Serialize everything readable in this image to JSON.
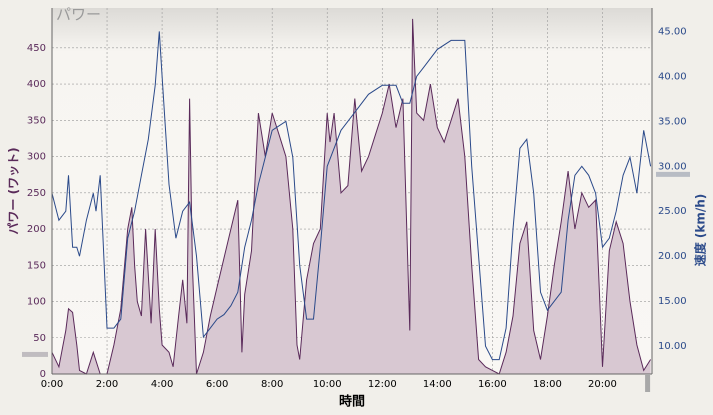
{
  "chart_data": {
    "type": "area-line",
    "title": "パワー",
    "x_label": "時間",
    "y_label": "パワー (ワット)",
    "y2_label": "速度 (km/h)",
    "xlim": [
      0,
      21.8
    ],
    "ylim": [
      0,
      505
    ],
    "y2lim": [
      6.9,
      47.6
    ],
    "xticks": [
      {
        "value": 0,
        "label": "0:00"
      },
      {
        "value": 2,
        "label": "2:00"
      },
      {
        "value": 4,
        "label": "4:00"
      },
      {
        "value": 6,
        "label": "6:00"
      },
      {
        "value": 8,
        "label": "8:00"
      },
      {
        "value": 10,
        "label": "10:00"
      },
      {
        "value": 12,
        "label": "12:00"
      },
      {
        "value": 14,
        "label": "14:00"
      },
      {
        "value": 16,
        "label": "16:00"
      },
      {
        "value": 18,
        "label": "18:00"
      },
      {
        "value": 20,
        "label": "20:00"
      }
    ],
    "yticks": [
      0,
      50,
      100,
      150,
      200,
      250,
      300,
      350,
      400,
      450
    ],
    "y2ticks": [
      {
        "value": 10,
        "label": "10.00"
      },
      {
        "value": 15,
        "label": "15.00"
      },
      {
        "value": 20,
        "label": "20.00"
      },
      {
        "value": 25,
        "label": "25.00"
      },
      {
        "value": 30,
        "label": "30.00"
      },
      {
        "value": 35,
        "label": "35.00"
      },
      {
        "value": 40,
        "label": "40.00"
      },
      {
        "value": 45,
        "label": "45.00"
      }
    ],
    "grid": true,
    "reference_markers": {
      "y": 27,
      "y2": 29.1,
      "x": 21.64
    },
    "series": [
      {
        "color": "#5a2a5a",
        "fill": "#d8c8d2",
        "x": [
          0,
          0.25,
          0.5,
          0.6,
          0.75,
          0.9,
          1.0,
          1.25,
          1.5,
          1.75,
          2.0,
          2.25,
          2.5,
          2.75,
          2.9,
          3.0,
          3.1,
          3.25,
          3.4,
          3.6,
          3.75,
          3.9,
          4.0,
          4.25,
          4.4,
          4.6,
          4.75,
          4.9,
          5.0,
          5.1,
          5.25,
          5.5,
          5.75,
          6.0,
          6.25,
          6.5,
          6.75,
          6.9,
          7.0,
          7.25,
          7.5,
          7.75,
          8.0,
          8.25,
          8.5,
          8.75,
          8.9,
          9.0,
          9.25,
          9.5,
          9.75,
          10.0,
          10.1,
          10.25,
          10.5,
          10.75,
          11.0,
          11.25,
          11.5,
          11.75,
          12.0,
          12.25,
          12.5,
          12.75,
          13.0,
          13.1,
          13.25,
          13.5,
          13.75,
          14.0,
          14.25,
          14.5,
          14.75,
          15.0,
          15.25,
          15.5,
          15.75,
          16.0,
          16.25,
          16.5,
          16.75,
          17.0,
          17.25,
          17.5,
          17.75,
          18.0,
          18.25,
          18.5,
          18.75,
          19.0,
          19.25,
          19.5,
          19.75,
          20.0,
          20.25,
          20.5,
          20.75,
          21.0,
          21.25,
          21.5,
          21.75
        ],
        "values": [
          30,
          10,
          60,
          90,
          85,
          40,
          5,
          0,
          30,
          0,
          0,
          40,
          90,
          200,
          230,
          150,
          100,
          80,
          200,
          70,
          200,
          90,
          40,
          30,
          10,
          80,
          130,
          70,
          380,
          150,
          0,
          30,
          80,
          120,
          160,
          200,
          240,
          30,
          110,
          170,
          360,
          300,
          360,
          330,
          300,
          200,
          40,
          20,
          130,
          180,
          200,
          360,
          320,
          360,
          250,
          260,
          380,
          280,
          300,
          330,
          360,
          400,
          340,
          380,
          60,
          490,
          360,
          350,
          400,
          340,
          320,
          350,
          380,
          300,
          150,
          20,
          10,
          5,
          0,
          30,
          80,
          180,
          210,
          60,
          20,
          80,
          150,
          210,
          280,
          200,
          250,
          230,
          240,
          10,
          170,
          210,
          180,
          100,
          40,
          5,
          20
        ]
      },
      {
        "color": "#2b4a8a",
        "axis": "y2",
        "x": [
          0,
          0.25,
          0.5,
          0.6,
          0.75,
          0.9,
          1.0,
          1.25,
          1.5,
          1.6,
          1.75,
          2.0,
          2.25,
          2.5,
          2.75,
          3.0,
          3.25,
          3.5,
          3.75,
          3.9,
          4.0,
          4.25,
          4.5,
          4.75,
          5.0,
          5.25,
          5.5,
          5.75,
          6.0,
          6.25,
          6.5,
          6.75,
          7.0,
          7.25,
          7.5,
          7.75,
          8.0,
          8.5,
          8.75,
          9.0,
          9.25,
          9.5,
          9.75,
          10.0,
          10.25,
          10.5,
          11.0,
          11.5,
          12.0,
          12.5,
          12.75,
          13.0,
          13.25,
          13.5,
          14.0,
          14.5,
          14.75,
          15.0,
          15.25,
          15.5,
          15.75,
          16.0,
          16.25,
          16.5,
          16.75,
          17.0,
          17.25,
          17.5,
          17.75,
          18.0,
          18.25,
          18.5,
          18.75,
          19.0,
          19.25,
          19.5,
          19.75,
          20.0,
          20.25,
          20.5,
          20.75,
          21.0,
          21.25,
          21.5,
          21.75
        ],
        "values": [
          27,
          24,
          25,
          29,
          21,
          21,
          20,
          24,
          27,
          25,
          29,
          12,
          12,
          13,
          22,
          25,
          29,
          33,
          39,
          45,
          40,
          28,
          22,
          25,
          26,
          20,
          11,
          12,
          13,
          13.5,
          14.5,
          16,
          21,
          24,
          28,
          31,
          34,
          35,
          31,
          19,
          13,
          13,
          21,
          30,
          32,
          34,
          36,
          38,
          39,
          39,
          37,
          37,
          40,
          41,
          43,
          44,
          44,
          44,
          30,
          20,
          10,
          8.5,
          8.5,
          12,
          23,
          32,
          33,
          27,
          16,
          14,
          15,
          16,
          24,
          29,
          30,
          29,
          27,
          21,
          22,
          25,
          29,
          31,
          27,
          34,
          30
        ]
      }
    ]
  }
}
